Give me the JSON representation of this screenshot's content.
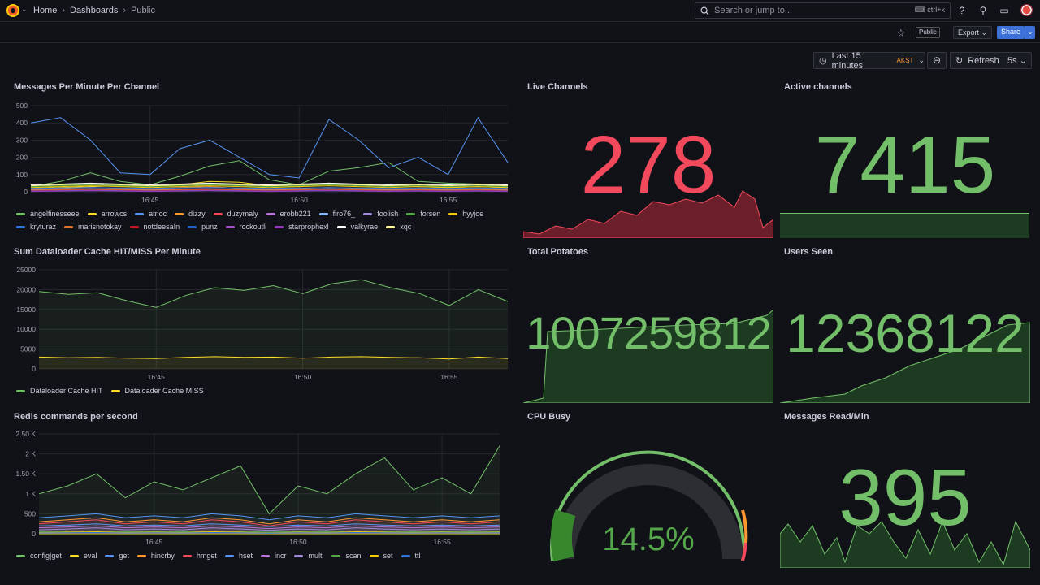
{
  "nav": {
    "breadcrumbs": [
      "Home",
      "Dashboards",
      "Public"
    ],
    "search_placeholder": "Search or jump to...",
    "search_shortcut": "ctrl+k"
  },
  "toolbar": {
    "public_tag": "Public",
    "export_label": "Export",
    "share_label": "Share",
    "time_range": "Last 15 minutes",
    "timezone": "AKST",
    "refresh_label": "Refresh",
    "refresh_interval": "5s"
  },
  "colors": {
    "red": "#f2495c",
    "green": "#73bf69",
    "yellow": "#fade2a",
    "orange": "#ff9830",
    "blue": "#5794f2",
    "gauge_track": "#2c2e33"
  },
  "panels": {
    "messages": {
      "title": "Messages Per Minute Per Channel"
    },
    "live": {
      "title": "Live Channels",
      "value": "278"
    },
    "active": {
      "title": "Active channels",
      "value": "7415"
    },
    "cache": {
      "title": "Sum Dataloader Cache HIT/MISS Per Minute"
    },
    "potatoes": {
      "title": "Total Potatoes",
      "value": "1007259812"
    },
    "users": {
      "title": "Users Seen",
      "value": "12368122"
    },
    "redis": {
      "title": "Redis commands per second"
    },
    "cpu": {
      "title": "CPU Busy",
      "value": "14.5%",
      "percent": 14.5
    },
    "read": {
      "title": "Messages Read/Min",
      "value": "395"
    }
  },
  "chart_data": [
    {
      "type": "line",
      "title": "Messages Per Minute Per Channel",
      "x": [
        "16:41",
        "16:42",
        "16:43",
        "16:44",
        "16:45",
        "16:46",
        "16:47",
        "16:48",
        "16:49",
        "16:50",
        "16:51",
        "16:52",
        "16:53",
        "16:54",
        "16:55",
        "16:56",
        "16:57"
      ],
      "x_ticks": [
        "16:45",
        "16:50",
        "16:55"
      ],
      "y_ticks": [
        "0",
        "100",
        "200",
        "300",
        "400",
        "500"
      ],
      "ylim": [
        0,
        500
      ],
      "series": [
        {
          "name": "angelfinesseee",
          "color": "#73bf69",
          "values": [
            30,
            60,
            110,
            60,
            40,
            90,
            150,
            180,
            70,
            40,
            120,
            140,
            170,
            60,
            50,
            45,
            40
          ]
        },
        {
          "name": "arrowcs",
          "color": "#fade2a",
          "values": [
            20,
            25,
            30,
            35,
            30,
            40,
            60,
            55,
            35,
            30,
            50,
            40,
            45,
            30,
            25,
            30,
            25
          ]
        },
        {
          "name": "atrioc",
          "color": "#5794f2",
          "values": [
            400,
            430,
            300,
            110,
            100,
            250,
            300,
            200,
            100,
            80,
            420,
            300,
            140,
            200,
            100,
            430,
            170
          ]
        },
        {
          "name": "dizzy",
          "color": "#ff9830",
          "values": [
            15,
            20,
            25,
            20,
            15,
            25,
            30,
            20,
            15,
            20,
            25,
            20,
            15,
            20,
            15,
            20,
            15
          ]
        },
        {
          "name": "duzymaly",
          "color": "#f2495c",
          "values": [
            10,
            12,
            15,
            10,
            12,
            15,
            18,
            12,
            10,
            12,
            15,
            12,
            10,
            12,
            10,
            12,
            10
          ]
        },
        {
          "name": "erobb221",
          "color": "#b877d9",
          "values": [
            5,
            8,
            10,
            8,
            5,
            8,
            10,
            8,
            5,
            8,
            10,
            8,
            5,
            8,
            5,
            8,
            5
          ]
        },
        {
          "name": "firo76_",
          "color": "#8ab8ff",
          "values": [
            8,
            10,
            12,
            10,
            8,
            10,
            12,
            10,
            8,
            10,
            12,
            10,
            8,
            10,
            8,
            10,
            8
          ]
        },
        {
          "name": "foolish",
          "color": "#9f8bd9",
          "values": [
            12,
            15,
            18,
            15,
            12,
            15,
            18,
            15,
            12,
            15,
            18,
            15,
            12,
            15,
            12,
            15,
            12
          ]
        },
        {
          "name": "forsen",
          "color": "#56a64b",
          "values": [
            30,
            35,
            40,
            35,
            30,
            35,
            40,
            35,
            30,
            35,
            40,
            35,
            30,
            35,
            30,
            35,
            30
          ]
        },
        {
          "name": "hyyjoe",
          "color": "#f2cc0c",
          "values": [
            25,
            30,
            35,
            30,
            25,
            30,
            35,
            30,
            25,
            30,
            35,
            30,
            25,
            30,
            25,
            30,
            25
          ]
        },
        {
          "name": "kryturaz",
          "color": "#3274d9",
          "values": [
            20,
            22,
            25,
            22,
            20,
            22,
            25,
            22,
            20,
            22,
            25,
            22,
            20,
            22,
            20,
            22,
            20
          ]
        },
        {
          "name": "marisnotokay",
          "color": "#e0752d",
          "values": [
            10,
            12,
            14,
            12,
            10,
            12,
            14,
            12,
            10,
            12,
            14,
            12,
            10,
            12,
            10,
            12,
            10
          ]
        },
        {
          "name": "notdeesaIn",
          "color": "#c4162a",
          "values": [
            6,
            8,
            10,
            8,
            6,
            8,
            10,
            8,
            6,
            8,
            10,
            8,
            6,
            8,
            6,
            8,
            6
          ]
        },
        {
          "name": "punz",
          "color": "#1f60c4",
          "values": [
            4,
            6,
            8,
            6,
            4,
            6,
            8,
            6,
            4,
            6,
            8,
            6,
            4,
            6,
            4,
            6,
            4
          ]
        },
        {
          "name": "rockoutli",
          "color": "#a352cc",
          "values": [
            3,
            5,
            7,
            5,
            3,
            5,
            7,
            5,
            3,
            5,
            7,
            5,
            3,
            5,
            3,
            5,
            3
          ]
        },
        {
          "name": "starprophexl",
          "color": "#8f3bb8",
          "values": [
            2,
            4,
            6,
            4,
            2,
            4,
            6,
            4,
            2,
            4,
            6,
            4,
            2,
            4,
            2,
            4,
            2
          ]
        },
        {
          "name": "valkyrae",
          "color": "#ffffff",
          "values": [
            40,
            45,
            50,
            45,
            40,
            45,
            50,
            45,
            40,
            45,
            50,
            45,
            40,
            45,
            40,
            45,
            40
          ]
        },
        {
          "name": "xqc",
          "color": "#fff899",
          "values": [
            35,
            40,
            45,
            40,
            35,
            40,
            45,
            40,
            35,
            40,
            45,
            40,
            35,
            40,
            35,
            40,
            35
          ]
        }
      ]
    },
    {
      "type": "area",
      "title": "Sum Dataloader Cache HIT/MISS Per Minute",
      "x": [
        "16:41",
        "16:42",
        "16:43",
        "16:44",
        "16:45",
        "16:46",
        "16:47",
        "16:48",
        "16:49",
        "16:50",
        "16:51",
        "16:52",
        "16:53",
        "16:54",
        "16:55",
        "16:56",
        "16:57"
      ],
      "x_ticks": [
        "16:45",
        "16:50",
        "16:55"
      ],
      "y_ticks": [
        "0",
        "5000",
        "10000",
        "15000",
        "20000",
        "25000"
      ],
      "ylim": [
        0,
        25000
      ],
      "series": [
        {
          "name": "Dataloader Cache HIT",
          "color": "#73bf69",
          "values": [
            19500,
            18800,
            19200,
            17200,
            15500,
            18500,
            20500,
            19800,
            21000,
            19000,
            21500,
            22500,
            20500,
            19000,
            16000,
            20000,
            17000
          ]
        },
        {
          "name": "Dataloader Cache MISS",
          "color": "#fade2a",
          "values": [
            3000,
            2800,
            2900,
            2700,
            2600,
            2900,
            3100,
            2900,
            3000,
            2700,
            3000,
            3100,
            2900,
            2800,
            2500,
            3000,
            2600
          ]
        }
      ]
    },
    {
      "type": "area",
      "title": "Redis commands per second",
      "x": [
        "16:41",
        "16:42",
        "16:43",
        "16:44",
        "16:45",
        "16:46",
        "16:47",
        "16:48",
        "16:49",
        "16:50",
        "16:51",
        "16:52",
        "16:53",
        "16:54",
        "16:55",
        "16:56",
        "16:57"
      ],
      "x_ticks": [
        "16:45",
        "16:50",
        "16:55"
      ],
      "y_ticks": [
        "0",
        "500",
        "1 K",
        "1.50 K",
        "2 K",
        "2.50 K"
      ],
      "ylim": [
        0,
        2500
      ],
      "series": [
        {
          "name": "config|get",
          "color": "#73bf69",
          "values": [
            1000,
            1200,
            1500,
            900,
            1300,
            1100,
            1400,
            1700,
            500,
            1200,
            1000,
            1500,
            1900,
            1100,
            1400,
            1000,
            2200
          ]
        },
        {
          "name": "eval",
          "color": "#fade2a",
          "values": [
            0,
            0,
            0,
            0,
            0,
            0,
            0,
            0,
            0,
            0,
            0,
            0,
            0,
            0,
            0,
            0,
            0
          ]
        },
        {
          "name": "get",
          "color": "#5794f2",
          "values": [
            400,
            450,
            500,
            400,
            450,
            400,
            500,
            450,
            350,
            450,
            400,
            500,
            450,
            400,
            450,
            400,
            450
          ]
        },
        {
          "name": "hincrby",
          "color": "#ff9830",
          "values": [
            300,
            350,
            400,
            300,
            350,
            300,
            400,
            350,
            250,
            350,
            300,
            400,
            350,
            300,
            350,
            300,
            350
          ]
        },
        {
          "name": "hmget",
          "color": "#f2495c",
          "values": [
            250,
            300,
            350,
            250,
            300,
            250,
            350,
            300,
            200,
            300,
            250,
            350,
            300,
            250,
            300,
            250,
            300
          ]
        },
        {
          "name": "hset",
          "color": "#5794f2",
          "values": [
            200,
            220,
            250,
            200,
            220,
            200,
            250,
            220,
            180,
            220,
            200,
            250,
            220,
            200,
            220,
            200,
            220
          ]
        },
        {
          "name": "incr",
          "color": "#b877d9",
          "values": [
            150,
            170,
            200,
            150,
            170,
            150,
            200,
            170,
            130,
            170,
            150,
            200,
            170,
            150,
            170,
            150,
            170
          ]
        },
        {
          "name": "multi",
          "color": "#9f8bd9",
          "values": [
            100,
            120,
            150,
            100,
            120,
            100,
            150,
            120,
            90,
            120,
            100,
            150,
            120,
            100,
            120,
            100,
            120
          ]
        },
        {
          "name": "scan",
          "color": "#56a64b",
          "values": [
            50,
            60,
            70,
            50,
            60,
            50,
            70,
            60,
            40,
            60,
            50,
            70,
            60,
            50,
            60,
            50,
            60
          ]
        },
        {
          "name": "set",
          "color": "#f2cc0c",
          "values": [
            30,
            40,
            50,
            30,
            40,
            30,
            50,
            40,
            20,
            40,
            30,
            50,
            40,
            30,
            40,
            30,
            40
          ]
        },
        {
          "name": "ttl",
          "color": "#3274d9",
          "values": [
            20,
            25,
            30,
            20,
            25,
            20,
            30,
            25,
            15,
            25,
            20,
            30,
            25,
            20,
            25,
            20,
            25
          ]
        }
      ]
    }
  ]
}
